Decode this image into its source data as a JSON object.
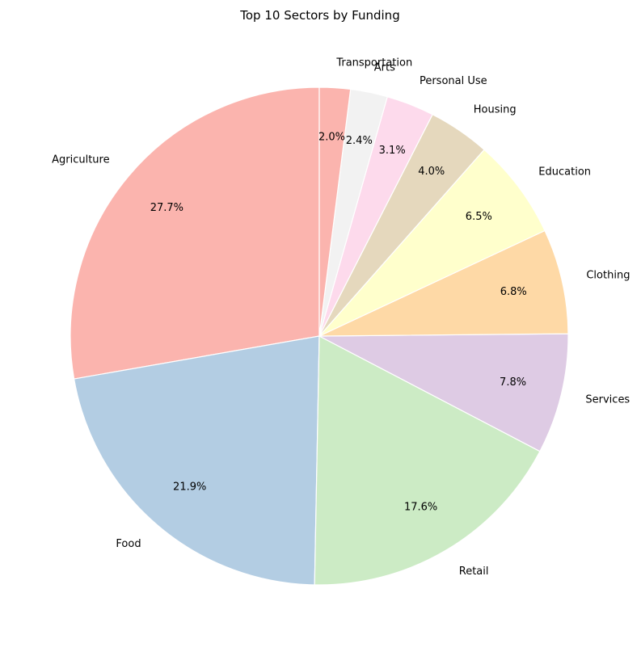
{
  "chart_data": {
    "type": "pie",
    "title": "Top 10 Sectors by Funding",
    "start_angle_deg": 90,
    "direction": "counterclockwise",
    "slices": [
      {
        "label": "Agriculture",
        "value": 27.7,
        "pct_text": "27.7%",
        "color": "#fbb4ae"
      },
      {
        "label": "Food",
        "value": 21.9,
        "pct_text": "21.9%",
        "color": "#b3cde3"
      },
      {
        "label": "Retail",
        "value": 17.6,
        "pct_text": "17.6%",
        "color": "#ccebc5"
      },
      {
        "label": "Services",
        "value": 7.8,
        "pct_text": "7.8%",
        "color": "#decbe4"
      },
      {
        "label": "Clothing",
        "value": 6.8,
        "pct_text": "6.8%",
        "color": "#fed9a6"
      },
      {
        "label": "Education",
        "value": 6.5,
        "pct_text": "6.5%",
        "color": "#ffffcc"
      },
      {
        "label": "Housing",
        "value": 4.0,
        "pct_text": "4.0%",
        "color": "#e5d8bd"
      },
      {
        "label": "Personal Use",
        "value": 3.1,
        "pct_text": "3.1%",
        "color": "#fddaec"
      },
      {
        "label": "Arts",
        "value": 2.4,
        "pct_text": "2.4%",
        "color": "#f2f2f2"
      },
      {
        "label": "Transportation",
        "value": 2.0,
        "pct_text": "2.0%",
        "color": "#fbb4ae"
      }
    ]
  }
}
